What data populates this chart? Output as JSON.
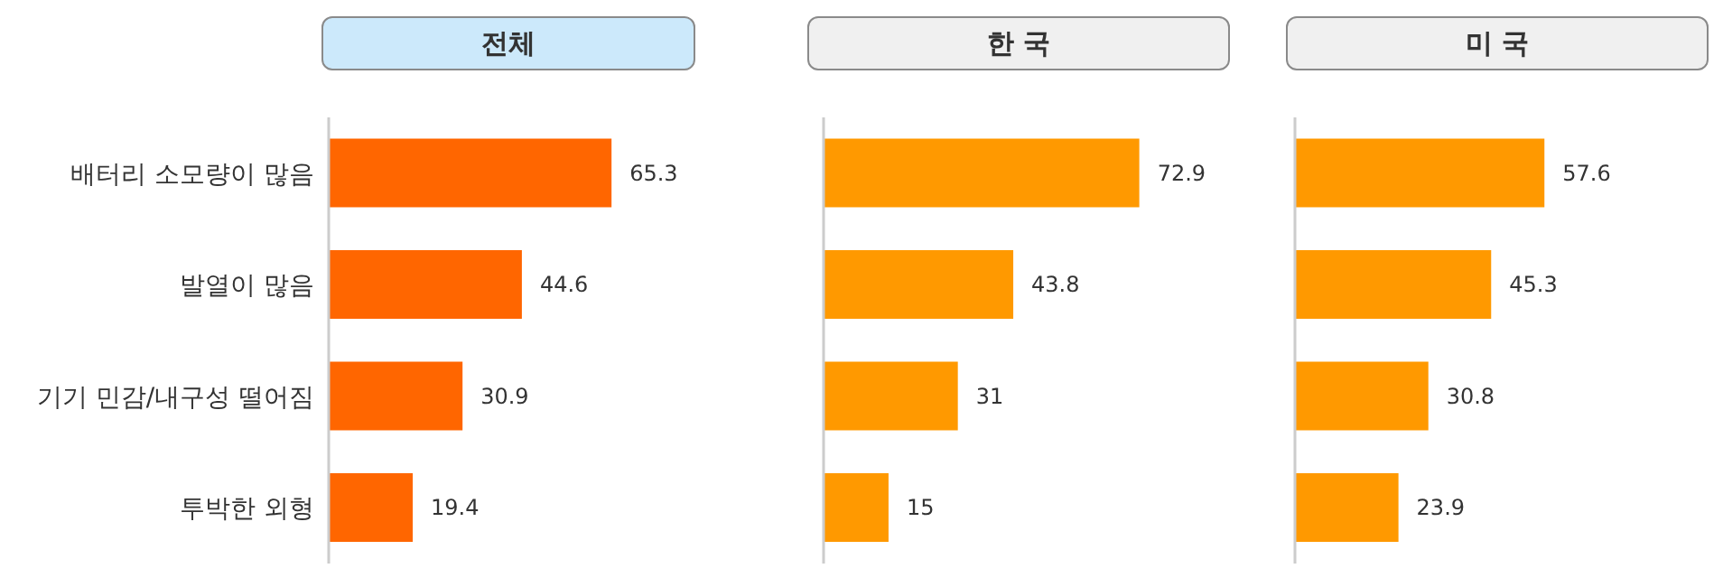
{
  "chart_data": [
    {
      "type": "bar",
      "orientation": "horizontal",
      "title": "전체",
      "categories": [
        "배터리 소모량이 많음",
        "발열이 많음",
        "기기 민감/내구성 떨어짐",
        "투박한 외형"
      ],
      "values": [
        65.3,
        44.6,
        30.9,
        19.4
      ],
      "color": "#ff6600",
      "data_labels": true,
      "tick_labels": "y",
      "grid": false,
      "legend": false
    },
    {
      "type": "bar",
      "orientation": "horizontal",
      "title": "한 국",
      "categories": [
        null,
        null,
        null,
        null
      ],
      "values": [
        72.9,
        43.8,
        31,
        15
      ],
      "color": "#ff9900",
      "data_labels": true,
      "tick_labels": false,
      "grid": false,
      "legend": false
    },
    {
      "type": "bar",
      "orientation": "horizontal",
      "title": "미 국",
      "categories": [
        null,
        null,
        null,
        null
      ],
      "values": [
        57.6,
        45.3,
        30.8,
        23.9
      ],
      "color": "#ff9900",
      "data_labels": true,
      "tick_labels": false,
      "grid": false,
      "legend": false
    }
  ]
}
